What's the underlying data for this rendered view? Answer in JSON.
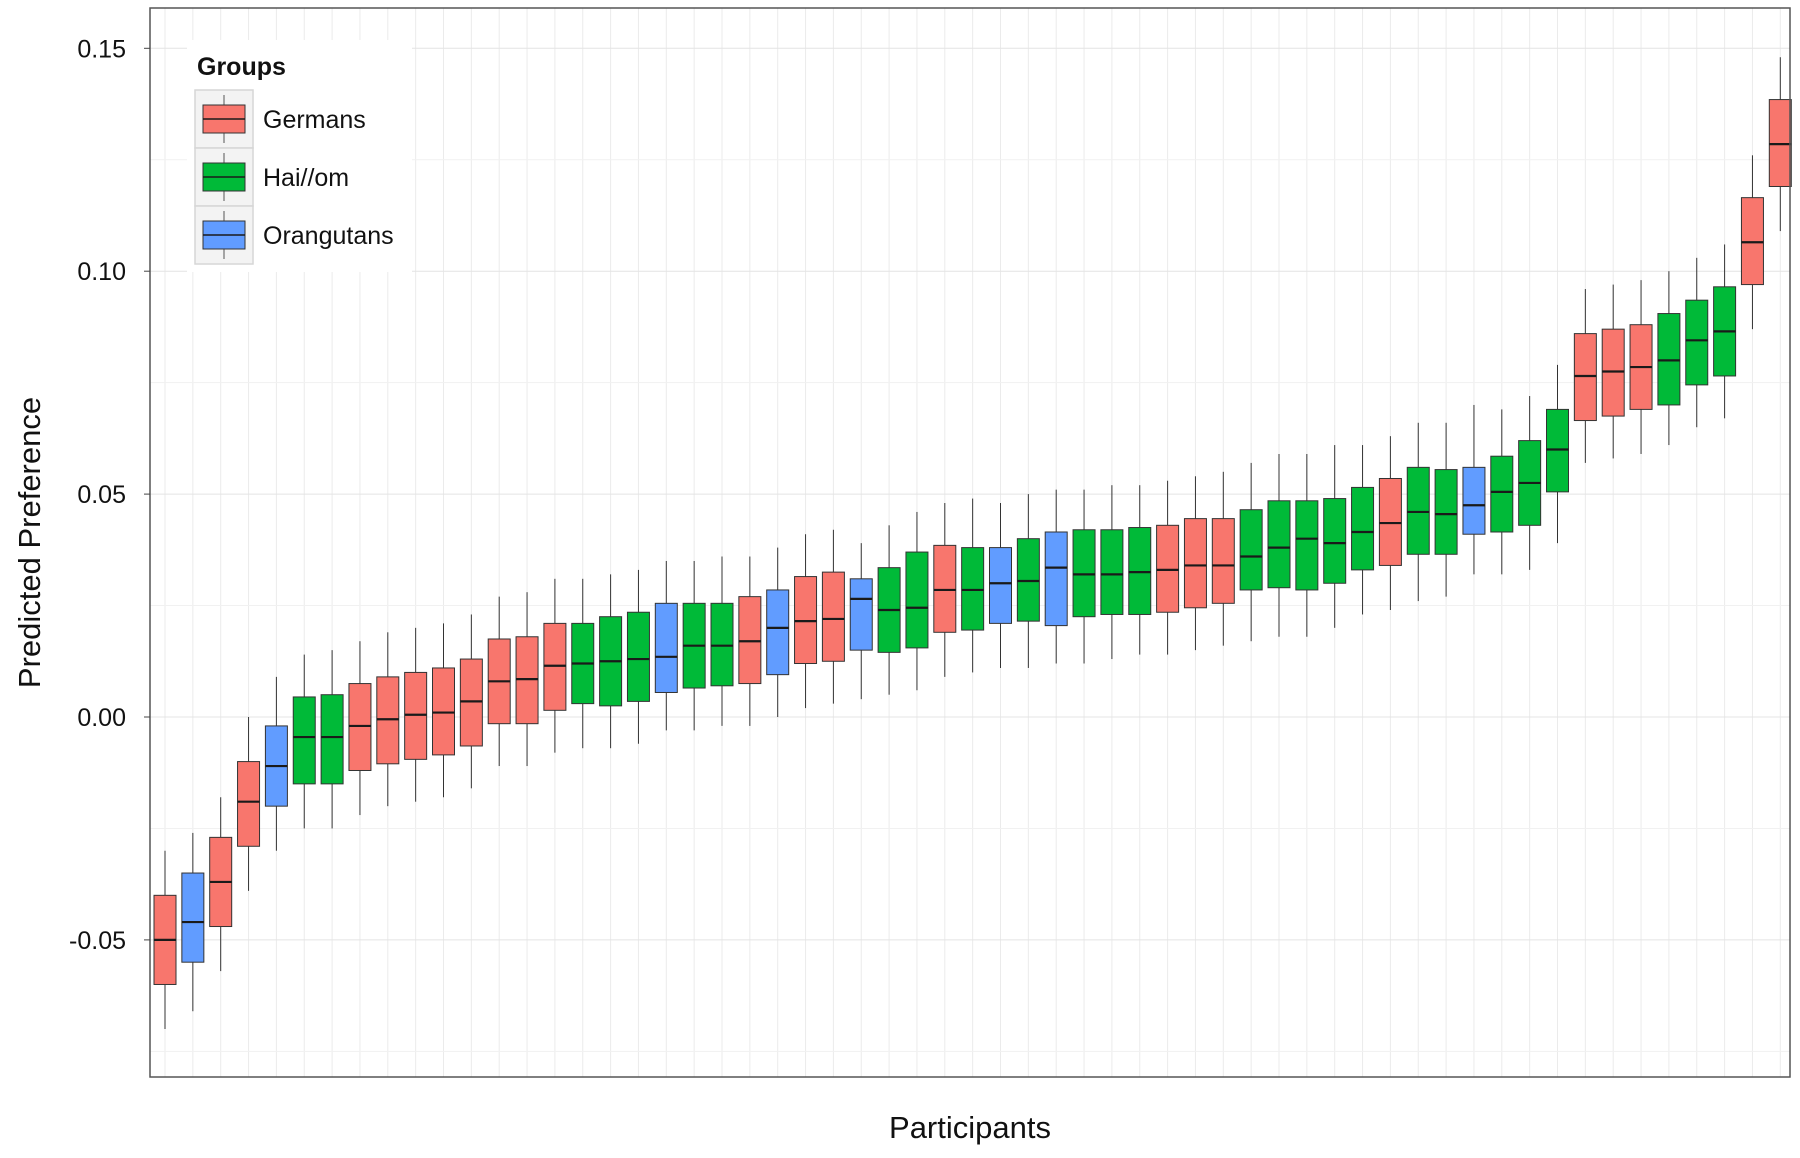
{
  "chart_data": {
    "type": "boxplot",
    "title": "",
    "xlabel": "Participants",
    "ylabel": "Predicted Preference",
    "ylim": [
      -0.08,
      0.16
    ],
    "yticks": [
      -0.05,
      0.0,
      0.05,
      0.1,
      0.15
    ],
    "ytick_labels": [
      "-0.05",
      "0.00",
      "0.05",
      "0.10",
      "0.15"
    ],
    "x_tick_labels_shown": false,
    "grid": true,
    "legend": {
      "title": "Groups",
      "position": "top-left",
      "entries": [
        {
          "name": "Germans",
          "color": "#F8766D"
        },
        {
          "name": "Hai//om",
          "color": "#00BA38"
        },
        {
          "name": "Orangutans",
          "color": "#619CFF"
        }
      ]
    },
    "groups": [
      "Germans",
      "Hai//om",
      "Orangutans"
    ],
    "colors": {
      "Germans": "#F8766D",
      "Hai//om": "#00BA38",
      "Orangutans": "#619CFF"
    },
    "series": [
      {
        "group": "Germans",
        "whisker_low": -0.07,
        "q1": -0.06,
        "median": -0.05,
        "q3": -0.04,
        "whisker_high": -0.03
      },
      {
        "group": "Orangutans",
        "whisker_low": -0.066,
        "q1": -0.055,
        "median": -0.046,
        "q3": -0.035,
        "whisker_high": -0.026
      },
      {
        "group": "Germans",
        "whisker_low": -0.057,
        "q1": -0.047,
        "median": -0.037,
        "q3": -0.027,
        "whisker_high": -0.018
      },
      {
        "group": "Germans",
        "whisker_low": -0.039,
        "q1": -0.029,
        "median": -0.019,
        "q3": -0.01,
        "whisker_high": 0.0
      },
      {
        "group": "Orangutans",
        "whisker_low": -0.03,
        "q1": -0.02,
        "median": -0.011,
        "q3": -0.002,
        "whisker_high": 0.009
      },
      {
        "group": "Hai//om",
        "whisker_low": -0.025,
        "q1": -0.015,
        "median": -0.0045,
        "q3": 0.0045,
        "whisker_high": 0.014
      },
      {
        "group": "Hai//om",
        "whisker_low": -0.025,
        "q1": -0.015,
        "median": -0.0045,
        "q3": 0.005,
        "whisker_high": 0.015
      },
      {
        "group": "Germans",
        "whisker_low": -0.022,
        "q1": -0.012,
        "median": -0.002,
        "q3": 0.0075,
        "whisker_high": 0.017
      },
      {
        "group": "Germans",
        "whisker_low": -0.02,
        "q1": -0.0105,
        "median": -0.0005,
        "q3": 0.009,
        "whisker_high": 0.019
      },
      {
        "group": "Germans",
        "whisker_low": -0.019,
        "q1": -0.0095,
        "median": 0.0005,
        "q3": 0.01,
        "whisker_high": 0.02
      },
      {
        "group": "Germans",
        "whisker_low": -0.018,
        "q1": -0.0085,
        "median": 0.001,
        "q3": 0.011,
        "whisker_high": 0.021
      },
      {
        "group": "Germans",
        "whisker_low": -0.016,
        "q1": -0.0065,
        "median": 0.0035,
        "q3": 0.013,
        "whisker_high": 0.023
      },
      {
        "group": "Germans",
        "whisker_low": -0.011,
        "q1": -0.0015,
        "median": 0.008,
        "q3": 0.0175,
        "whisker_high": 0.027
      },
      {
        "group": "Germans",
        "whisker_low": -0.011,
        "q1": -0.0015,
        "median": 0.0085,
        "q3": 0.018,
        "whisker_high": 0.028
      },
      {
        "group": "Germans",
        "whisker_low": -0.008,
        "q1": 0.0015,
        "median": 0.0115,
        "q3": 0.021,
        "whisker_high": 0.031
      },
      {
        "group": "Hai//om",
        "whisker_low": -0.007,
        "q1": 0.003,
        "median": 0.012,
        "q3": 0.021,
        "whisker_high": 0.031
      },
      {
        "group": "Hai//om",
        "whisker_low": -0.007,
        "q1": 0.0025,
        "median": 0.0125,
        "q3": 0.0225,
        "whisker_high": 0.032
      },
      {
        "group": "Hai//om",
        "whisker_low": -0.006,
        "q1": 0.0035,
        "median": 0.013,
        "q3": 0.0235,
        "whisker_high": 0.033
      },
      {
        "group": "Orangutans",
        "whisker_low": -0.003,
        "q1": 0.0055,
        "median": 0.0135,
        "q3": 0.0255,
        "whisker_high": 0.035
      },
      {
        "group": "Hai//om",
        "whisker_low": -0.003,
        "q1": 0.0065,
        "median": 0.016,
        "q3": 0.0255,
        "whisker_high": 0.035
      },
      {
        "group": "Hai//om",
        "whisker_low": -0.002,
        "q1": 0.007,
        "median": 0.016,
        "q3": 0.0255,
        "whisker_high": 0.036
      },
      {
        "group": "Germans",
        "whisker_low": -0.002,
        "q1": 0.0075,
        "median": 0.017,
        "q3": 0.027,
        "whisker_high": 0.036
      },
      {
        "group": "Orangutans",
        "whisker_low": 0.0,
        "q1": 0.0095,
        "median": 0.02,
        "q3": 0.0285,
        "whisker_high": 0.038
      },
      {
        "group": "Germans",
        "whisker_low": 0.002,
        "q1": 0.012,
        "median": 0.0215,
        "q3": 0.0315,
        "whisker_high": 0.041
      },
      {
        "group": "Germans",
        "whisker_low": 0.003,
        "q1": 0.0125,
        "median": 0.022,
        "q3": 0.0325,
        "whisker_high": 0.042
      },
      {
        "group": "Orangutans",
        "whisker_low": 0.004,
        "q1": 0.015,
        "median": 0.0265,
        "q3": 0.031,
        "whisker_high": 0.039
      },
      {
        "group": "Hai//om",
        "whisker_low": 0.005,
        "q1": 0.0145,
        "median": 0.024,
        "q3": 0.0335,
        "whisker_high": 0.043
      },
      {
        "group": "Hai//om",
        "whisker_low": 0.006,
        "q1": 0.0155,
        "median": 0.0245,
        "q3": 0.037,
        "whisker_high": 0.046
      },
      {
        "group": "Germans",
        "whisker_low": 0.009,
        "q1": 0.019,
        "median": 0.0285,
        "q3": 0.0385,
        "whisker_high": 0.048
      },
      {
        "group": "Hai//om",
        "whisker_low": 0.01,
        "q1": 0.0195,
        "median": 0.0285,
        "q3": 0.038,
        "whisker_high": 0.049
      },
      {
        "group": "Orangutans",
        "whisker_low": 0.011,
        "q1": 0.021,
        "median": 0.03,
        "q3": 0.038,
        "whisker_high": 0.048
      },
      {
        "group": "Hai//om",
        "whisker_low": 0.011,
        "q1": 0.0215,
        "median": 0.0305,
        "q3": 0.04,
        "whisker_high": 0.05
      },
      {
        "group": "Orangutans",
        "whisker_low": 0.012,
        "q1": 0.0205,
        "median": 0.0335,
        "q3": 0.0415,
        "whisker_high": 0.051
      },
      {
        "group": "Hai//om",
        "whisker_low": 0.012,
        "q1": 0.0225,
        "median": 0.032,
        "q3": 0.042,
        "whisker_high": 0.051
      },
      {
        "group": "Hai//om",
        "whisker_low": 0.013,
        "q1": 0.023,
        "median": 0.032,
        "q3": 0.042,
        "whisker_high": 0.052
      },
      {
        "group": "Hai//om",
        "whisker_low": 0.014,
        "q1": 0.023,
        "median": 0.0325,
        "q3": 0.0425,
        "whisker_high": 0.052
      },
      {
        "group": "Germans",
        "whisker_low": 0.014,
        "q1": 0.0235,
        "median": 0.033,
        "q3": 0.043,
        "whisker_high": 0.053
      },
      {
        "group": "Germans",
        "whisker_low": 0.015,
        "q1": 0.0245,
        "median": 0.034,
        "q3": 0.0445,
        "whisker_high": 0.054
      },
      {
        "group": "Germans",
        "whisker_low": 0.016,
        "q1": 0.0255,
        "median": 0.034,
        "q3": 0.0445,
        "whisker_high": 0.055
      },
      {
        "group": "Hai//om",
        "whisker_low": 0.017,
        "q1": 0.0285,
        "median": 0.036,
        "q3": 0.0465,
        "whisker_high": 0.057
      },
      {
        "group": "Hai//om",
        "whisker_low": 0.018,
        "q1": 0.029,
        "median": 0.038,
        "q3": 0.0485,
        "whisker_high": 0.059
      },
      {
        "group": "Hai//om",
        "whisker_low": 0.018,
        "q1": 0.0285,
        "median": 0.04,
        "q3": 0.0485,
        "whisker_high": 0.059
      },
      {
        "group": "Hai//om",
        "whisker_low": 0.02,
        "q1": 0.03,
        "median": 0.039,
        "q3": 0.049,
        "whisker_high": 0.061
      },
      {
        "group": "Hai//om",
        "whisker_low": 0.023,
        "q1": 0.033,
        "median": 0.0415,
        "q3": 0.0515,
        "whisker_high": 0.061
      },
      {
        "group": "Germans",
        "whisker_low": 0.024,
        "q1": 0.034,
        "median": 0.0435,
        "q3": 0.0535,
        "whisker_high": 0.063
      },
      {
        "group": "Hai//om",
        "whisker_low": 0.026,
        "q1": 0.0365,
        "median": 0.046,
        "q3": 0.056,
        "whisker_high": 0.066
      },
      {
        "group": "Hai//om",
        "whisker_low": 0.027,
        "q1": 0.0365,
        "median": 0.0455,
        "q3": 0.0555,
        "whisker_high": 0.066
      },
      {
        "group": "Orangutans",
        "whisker_low": 0.032,
        "q1": 0.041,
        "median": 0.0475,
        "q3": 0.056,
        "whisker_high": 0.07
      },
      {
        "group": "Hai//om",
        "whisker_low": 0.032,
        "q1": 0.0415,
        "median": 0.0505,
        "q3": 0.0585,
        "whisker_high": 0.069
      },
      {
        "group": "Hai//om",
        "whisker_low": 0.033,
        "q1": 0.043,
        "median": 0.0525,
        "q3": 0.062,
        "whisker_high": 0.072
      },
      {
        "group": "Hai//om",
        "whisker_low": 0.039,
        "q1": 0.0505,
        "median": 0.06,
        "q3": 0.069,
        "whisker_high": 0.079
      },
      {
        "group": "Germans",
        "whisker_low": 0.057,
        "q1": 0.0665,
        "median": 0.0765,
        "q3": 0.086,
        "whisker_high": 0.096
      },
      {
        "group": "Germans",
        "whisker_low": 0.058,
        "q1": 0.0675,
        "median": 0.0775,
        "q3": 0.087,
        "whisker_high": 0.097
      },
      {
        "group": "Germans",
        "whisker_low": 0.059,
        "q1": 0.069,
        "median": 0.0785,
        "q3": 0.088,
        "whisker_high": 0.098
      },
      {
        "group": "Hai//om",
        "whisker_low": 0.061,
        "q1": 0.07,
        "median": 0.08,
        "q3": 0.0905,
        "whisker_high": 0.1
      },
      {
        "group": "Hai//om",
        "whisker_low": 0.065,
        "q1": 0.0745,
        "median": 0.0845,
        "q3": 0.0935,
        "whisker_high": 0.103
      },
      {
        "group": "Hai//om",
        "whisker_low": 0.067,
        "q1": 0.0765,
        "median": 0.0865,
        "q3": 0.0965,
        "whisker_high": 0.106
      },
      {
        "group": "Germans",
        "whisker_low": 0.087,
        "q1": 0.097,
        "median": 0.1065,
        "q3": 0.1165,
        "whisker_high": 0.126
      },
      {
        "group": "Germans",
        "whisker_low": 0.109,
        "q1": 0.119,
        "median": 0.1285,
        "q3": 0.1385,
        "whisker_high": 0.148
      }
    ]
  }
}
